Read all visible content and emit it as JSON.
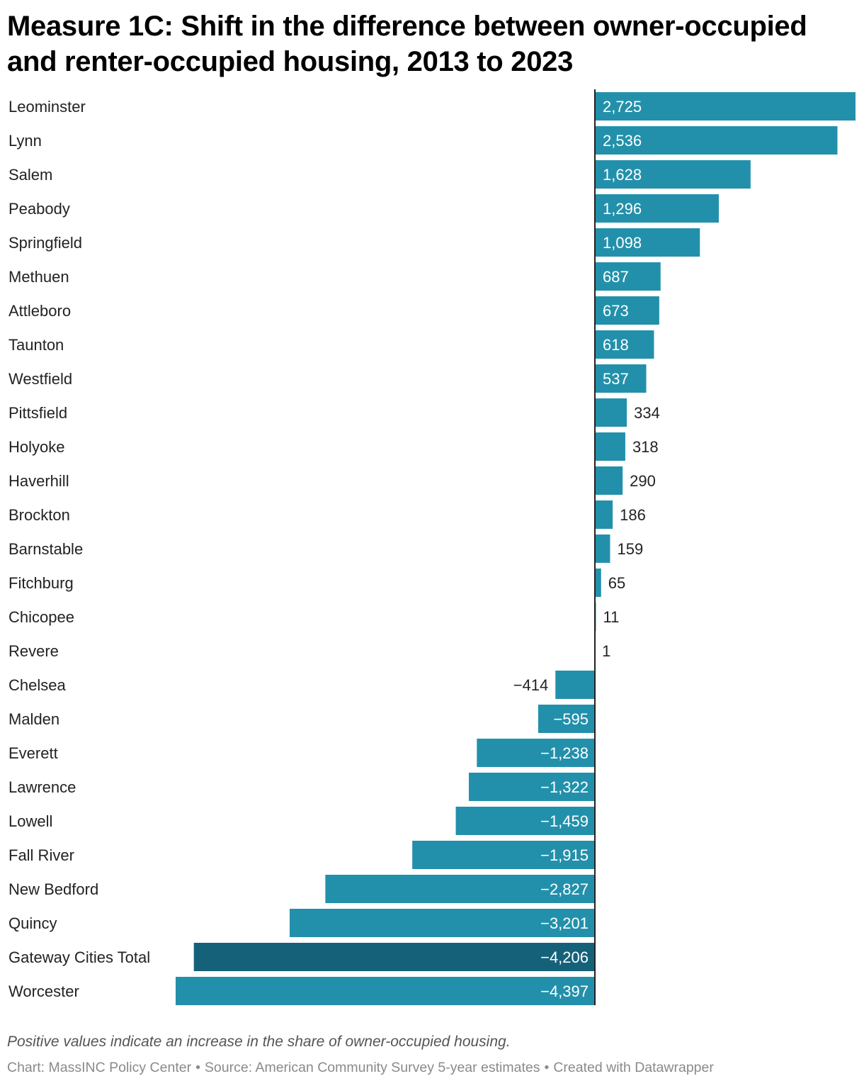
{
  "chart_data": {
    "type": "bar",
    "orientation": "horizontal",
    "title": "Measure 1C: Shift in the difference between owner-occupied and renter-occupied housing, 2013 to 2023",
    "note": "Positive values indicate an increase in the share of owner-occupied housing.",
    "footer": {
      "chart_by": "Chart: MassINC Policy Center",
      "source": "Source: American Community Survey 5-year estimates",
      "created_with": "Created with Datawrapper",
      "separator": "•"
    },
    "categories": [
      "Leominster",
      "Lynn",
      "Salem",
      "Peabody",
      "Springfield",
      "Methuen",
      "Attleboro",
      "Taunton",
      "Westfield",
      "Pittsfield",
      "Holyoke",
      "Haverhill",
      "Brockton",
      "Barnstable",
      "Fitchburg",
      "Chicopee",
      "Revere",
      "Chelsea",
      "Malden",
      "Everett",
      "Lawrence",
      "Lowell",
      "Fall River",
      "New Bedford",
      "Quincy",
      "Gateway Cities Total",
      "Worcester"
    ],
    "values": [
      2725,
      2536,
      1628,
      1296,
      1098,
      687,
      673,
      618,
      537,
      334,
      318,
      290,
      186,
      159,
      65,
      11,
      1,
      -414,
      -595,
      -1238,
      -1322,
      -1459,
      -1915,
      -2827,
      -3201,
      -4206,
      -4397
    ],
    "value_labels": [
      "2,725",
      "2,536",
      "1,628",
      "1,296",
      "1,098",
      "687",
      "673",
      "618",
      "537",
      "334",
      "318",
      "290",
      "186",
      "159",
      "65",
      "11",
      "1",
      "−414",
      "−595",
      "−1,238",
      "−1,322",
      "−1,459",
      "−1,915",
      "−2,827",
      "−3,201",
      "−4,206",
      "−4,397"
    ],
    "highlight_category": "Gateway Cities Total",
    "xlim": [
      -4397,
      2725
    ],
    "bar_color": "#2390ab",
    "highlight_color": "#15617a",
    "axis_color": "#222222"
  }
}
